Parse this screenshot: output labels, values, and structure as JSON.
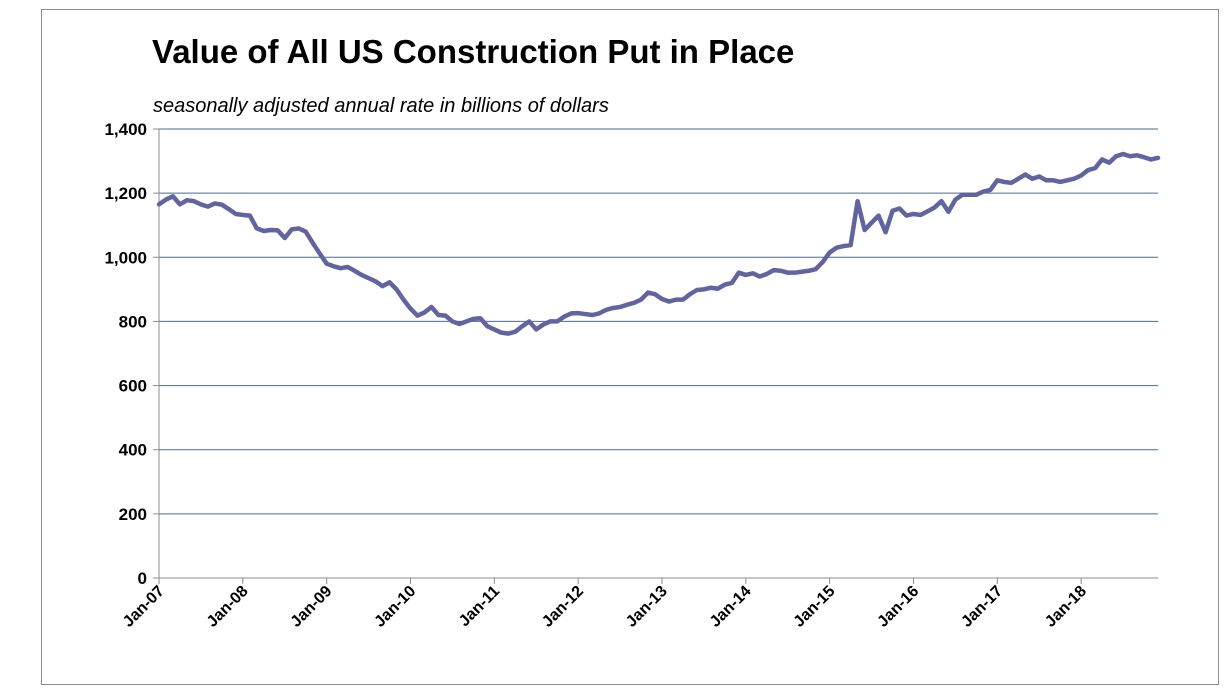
{
  "chart_data": {
    "type": "line",
    "title": "Value of All US Construction Put in Place",
    "subtitle": "seasonally adjusted annual rate in billions of dollars",
    "xlabel": "",
    "ylabel": "",
    "ylim": [
      0,
      1400
    ],
    "yticks": [
      0,
      200,
      400,
      600,
      800,
      1000,
      1200,
      1400
    ],
    "ytick_labels": [
      "0",
      "200",
      "400",
      "600",
      "800",
      "1,000",
      "1,200",
      "1,400"
    ],
    "xtick_labels": [
      "Jan-07",
      "Jan-08",
      "Jan-09",
      "Jan-10",
      "Jan-11",
      "Jan-12",
      "Jan-13",
      "Jan-14",
      "Jan-15",
      "Jan-16",
      "Jan-17",
      "Jan-18"
    ],
    "x_start": "Jan-07",
    "x_frequency": "monthly",
    "grid": true,
    "legend": "none",
    "line_color": "#6264a0",
    "gridline_color": "#4a6a9a",
    "series": [
      {
        "values": [
          1165,
          1180,
          1190,
          1165,
          1178,
          1175,
          1165,
          1158,
          1168,
          1164,
          1150,
          1135,
          1132,
          1130,
          1090,
          1082,
          1085,
          1084,
          1060,
          1087,
          1090,
          1080,
          1045,
          1012,
          980,
          972,
          966,
          970,
          958,
          945,
          935,
          925,
          910,
          922,
          900,
          868,
          840,
          818,
          828,
          845,
          820,
          818,
          800,
          792,
          800,
          808,
          810,
          785,
          775,
          765,
          762,
          768,
          785,
          800,
          775,
          790,
          800,
          800,
          815,
          825,
          826,
          823,
          820,
          825,
          836,
          842,
          845,
          852,
          858,
          868,
          890,
          885,
          870,
          862,
          868,
          868,
          885,
          898,
          900,
          905,
          902,
          915,
          920,
          952,
          945,
          950,
          940,
          948,
          960,
          958,
          952,
          952,
          955,
          958,
          963,
          985,
          1015,
          1030,
          1035,
          1038,
          1175,
          1085,
          1108,
          1130,
          1078,
          1145,
          1152,
          1130,
          1135,
          1132,
          1143,
          1155,
          1175,
          1142,
          1180,
          1195,
          1195,
          1195,
          1205,
          1210,
          1240,
          1235,
          1232,
          1245,
          1258,
          1245,
          1252,
          1240,
          1240,
          1235,
          1240,
          1245,
          1255,
          1272,
          1278,
          1305,
          1295,
          1315,
          1322,
          1315,
          1318,
          1312,
          1305,
          1310
        ]
      }
    ]
  }
}
